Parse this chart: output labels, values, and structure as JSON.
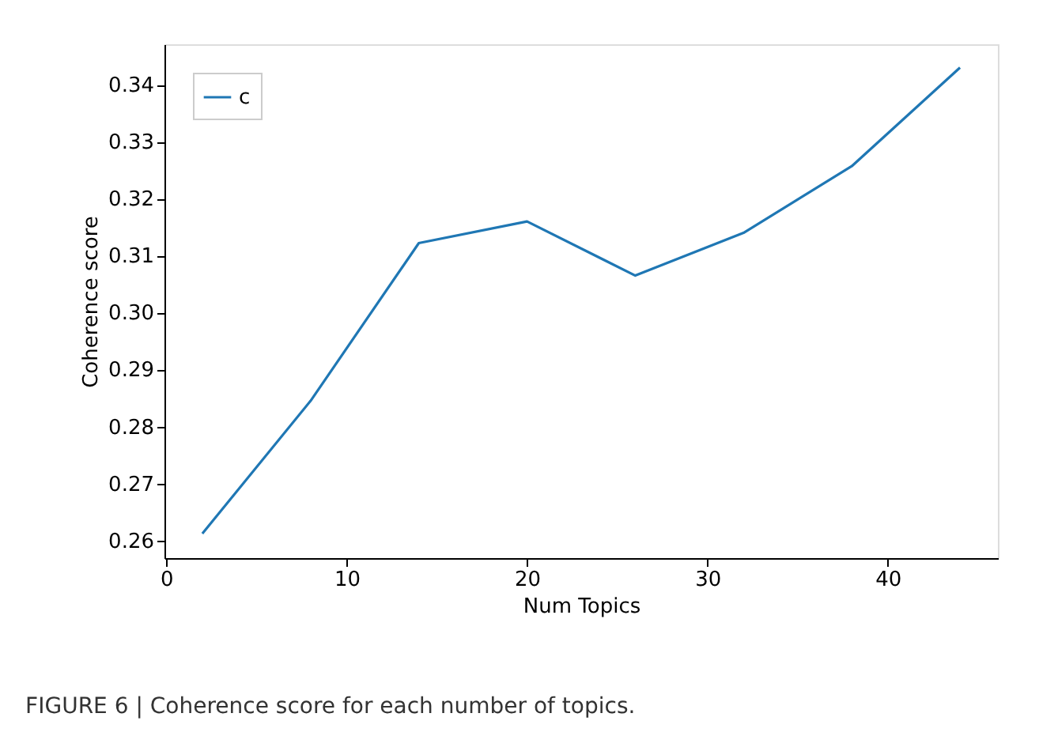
{
  "chart_data": {
    "type": "line",
    "xlabel": "Num Topics",
    "ylabel": "Coherence score",
    "x": [
      2,
      8,
      14,
      20,
      26,
      32,
      38,
      44
    ],
    "series": [
      {
        "name": "c",
        "color": "#1f77b4",
        "values": [
          0.2612,
          0.2845,
          0.3122,
          0.316,
          0.3065,
          0.314,
          0.3257,
          0.343
        ]
      }
    ],
    "xlim": [
      -0.1,
      46.1
    ],
    "xticks": [
      0,
      10,
      20,
      30,
      40
    ],
    "ylim": [
      0.2569,
      0.3471
    ],
    "yticks": [
      {
        "value": 0.26,
        "label": "0.26"
      },
      {
        "value": 0.27,
        "label": "0.27"
      },
      {
        "value": 0.28,
        "label": "0.28"
      },
      {
        "value": 0.29,
        "label": "0.29"
      },
      {
        "value": 0.3,
        "label": "0.30"
      },
      {
        "value": 0.31,
        "label": "0.31"
      },
      {
        "value": 0.32,
        "label": "0.32"
      },
      {
        "value": 0.33,
        "label": "0.33"
      },
      {
        "value": 0.34,
        "label": "0.34"
      }
    ],
    "line_style": "solid",
    "legend": "top left",
    "grid": false,
    "annotations": [
      "FIGURE 6 | Coherence score for each number of topics."
    ]
  }
}
